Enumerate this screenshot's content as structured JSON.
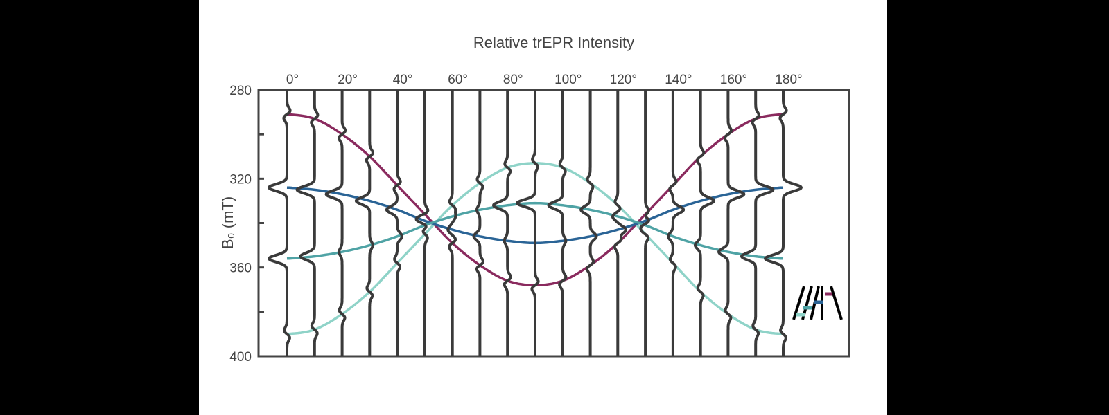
{
  "chart_data": {
    "type": "line",
    "title": "Relative trEPR Intensity",
    "ylabel": "B₀ (mT)",
    "xlabel": "",
    "x_unit": "degrees",
    "x": [
      0,
      10,
      20,
      30,
      40,
      50,
      60,
      70,
      80,
      90,
      100,
      110,
      120,
      130,
      140,
      150,
      160,
      170,
      180
    ],
    "x_tick_labels": [
      "0°",
      "20°",
      "40°",
      "60°",
      "80°",
      "100°",
      "120°",
      "140°",
      "160°",
      "180°"
    ],
    "x_tick_values": [
      0,
      20,
      40,
      60,
      80,
      100,
      120,
      140,
      160,
      180
    ],
    "ylim": [
      400,
      280
    ],
    "y_inverted": true,
    "y_tick_labels": [
      "280",
      "320",
      "360",
      "400"
    ],
    "y_tick_values": [
      280,
      300,
      320,
      340,
      360,
      380,
      400
    ],
    "grid": false,
    "legend": "bottom-right orientation icon",
    "trace_color": "#3a3a3a",
    "series": [
      {
        "color": "#8a2a5e",
        "values": [
          291,
          293,
          300,
          310,
          323,
          336,
          349,
          359,
          366,
          368,
          366,
          359,
          349,
          336,
          323,
          310,
          300,
          293,
          291
        ]
      },
      {
        "color": "#8fd3c8",
        "values": [
          390,
          388,
          381,
          371,
          358,
          345,
          332,
          322,
          315,
          313,
          315,
          322,
          332,
          345,
          358,
          371,
          381,
          388,
          390
        ]
      },
      {
        "color": "#2a6496",
        "values": [
          324,
          325,
          327,
          330,
          334,
          339,
          343,
          346,
          348,
          349,
          348,
          346,
          343,
          339,
          334,
          330,
          327,
          325,
          324
        ]
      },
      {
        "color": "#4fa3a5",
        "values": [
          356,
          355,
          353,
          350,
          346,
          341,
          337,
          334,
          332,
          331,
          332,
          334,
          337,
          341,
          346,
          350,
          353,
          355,
          356
        ]
      }
    ]
  }
}
